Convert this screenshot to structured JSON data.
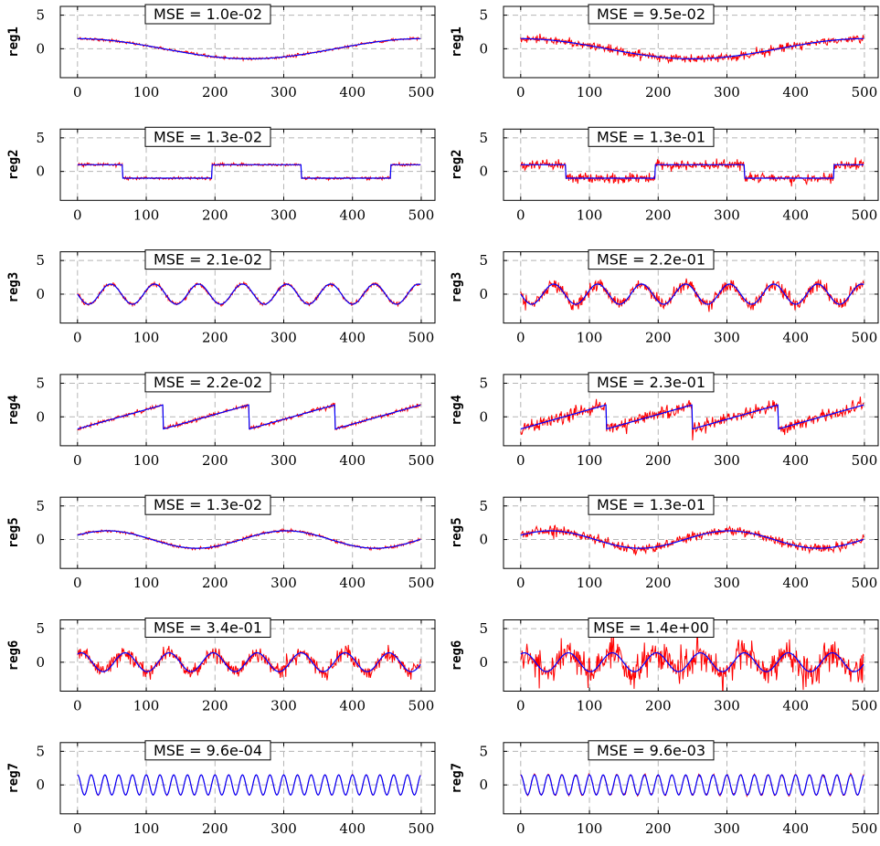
{
  "chart_data": {
    "type": "line",
    "layout": "grid 7 rows x 2 columns",
    "xlim": [
      -25,
      520
    ],
    "ylim": [
      -4.3,
      6.3
    ],
    "x_ticks": [
      0,
      100,
      200,
      300,
      400,
      500
    ],
    "y_ticks": [
      0,
      5
    ],
    "grid": "dashed, on",
    "series_colors": {
      "target": "#0000ff",
      "noisy": "#ff0000"
    },
    "n_points": 500,
    "rows": [
      {
        "ylabel": "reg1",
        "signal": "sine",
        "amplitude": 1.5,
        "period": 500,
        "phase_deg": 90,
        "panels": [
          {
            "mse": "MSE = 1.0e-02",
            "noise_std": 0.1
          },
          {
            "mse": "MSE = 9.5e-02",
            "noise_std": 0.31
          }
        ]
      },
      {
        "ylabel": "reg2",
        "signal": "square",
        "amplitude": 1.0,
        "period": 260,
        "phase_deg": 90,
        "panels": [
          {
            "mse": "MSE = 1.3e-02",
            "noise_std": 0.11
          },
          {
            "mse": "MSE = 1.3e-01",
            "noise_std": 0.36
          }
        ]
      },
      {
        "ylabel": "reg3",
        "signal": "sine",
        "amplitude": 1.5,
        "period": 64,
        "phase_deg": 180,
        "panels": [
          {
            "mse": "MSE = 2.1e-02",
            "noise_std": 0.15
          },
          {
            "mse": "MSE = 2.2e-01",
            "noise_std": 0.47
          }
        ]
      },
      {
        "ylabel": "reg4",
        "signal": "sawtooth",
        "amplitude": 1.8,
        "period": 125,
        "phase_deg": 0,
        "panels": [
          {
            "mse": "MSE = 2.2e-02",
            "noise_std": 0.15
          },
          {
            "mse": "MSE = 2.3e-01",
            "noise_std": 0.48
          }
        ]
      },
      {
        "ylabel": "reg5",
        "signal": "sine",
        "amplitude": 1.3,
        "period": 260,
        "phase_deg": 30,
        "panels": [
          {
            "mse": "MSE = 1.3e-02",
            "noise_std": 0.11
          },
          {
            "mse": "MSE = 1.3e-01",
            "noise_std": 0.36
          }
        ]
      },
      {
        "ylabel": "reg6",
        "signal": "sine",
        "amplitude": 1.4,
        "period": 64,
        "phase_deg": 60,
        "panels": [
          {
            "mse": "MSE = 3.4e-01",
            "noise_std": 0.58
          },
          {
            "mse": "MSE = 1.4e+00",
            "noise_std": 1.18
          }
        ]
      },
      {
        "ylabel": "reg7",
        "signal": "sine",
        "amplitude": 1.5,
        "period": 20,
        "phase_deg": 90,
        "panels": [
          {
            "mse": "MSE = 9.6e-04",
            "noise_std": 0.03
          },
          {
            "mse": "MSE = 9.6e-03",
            "noise_std": 0.1
          }
        ]
      }
    ]
  }
}
